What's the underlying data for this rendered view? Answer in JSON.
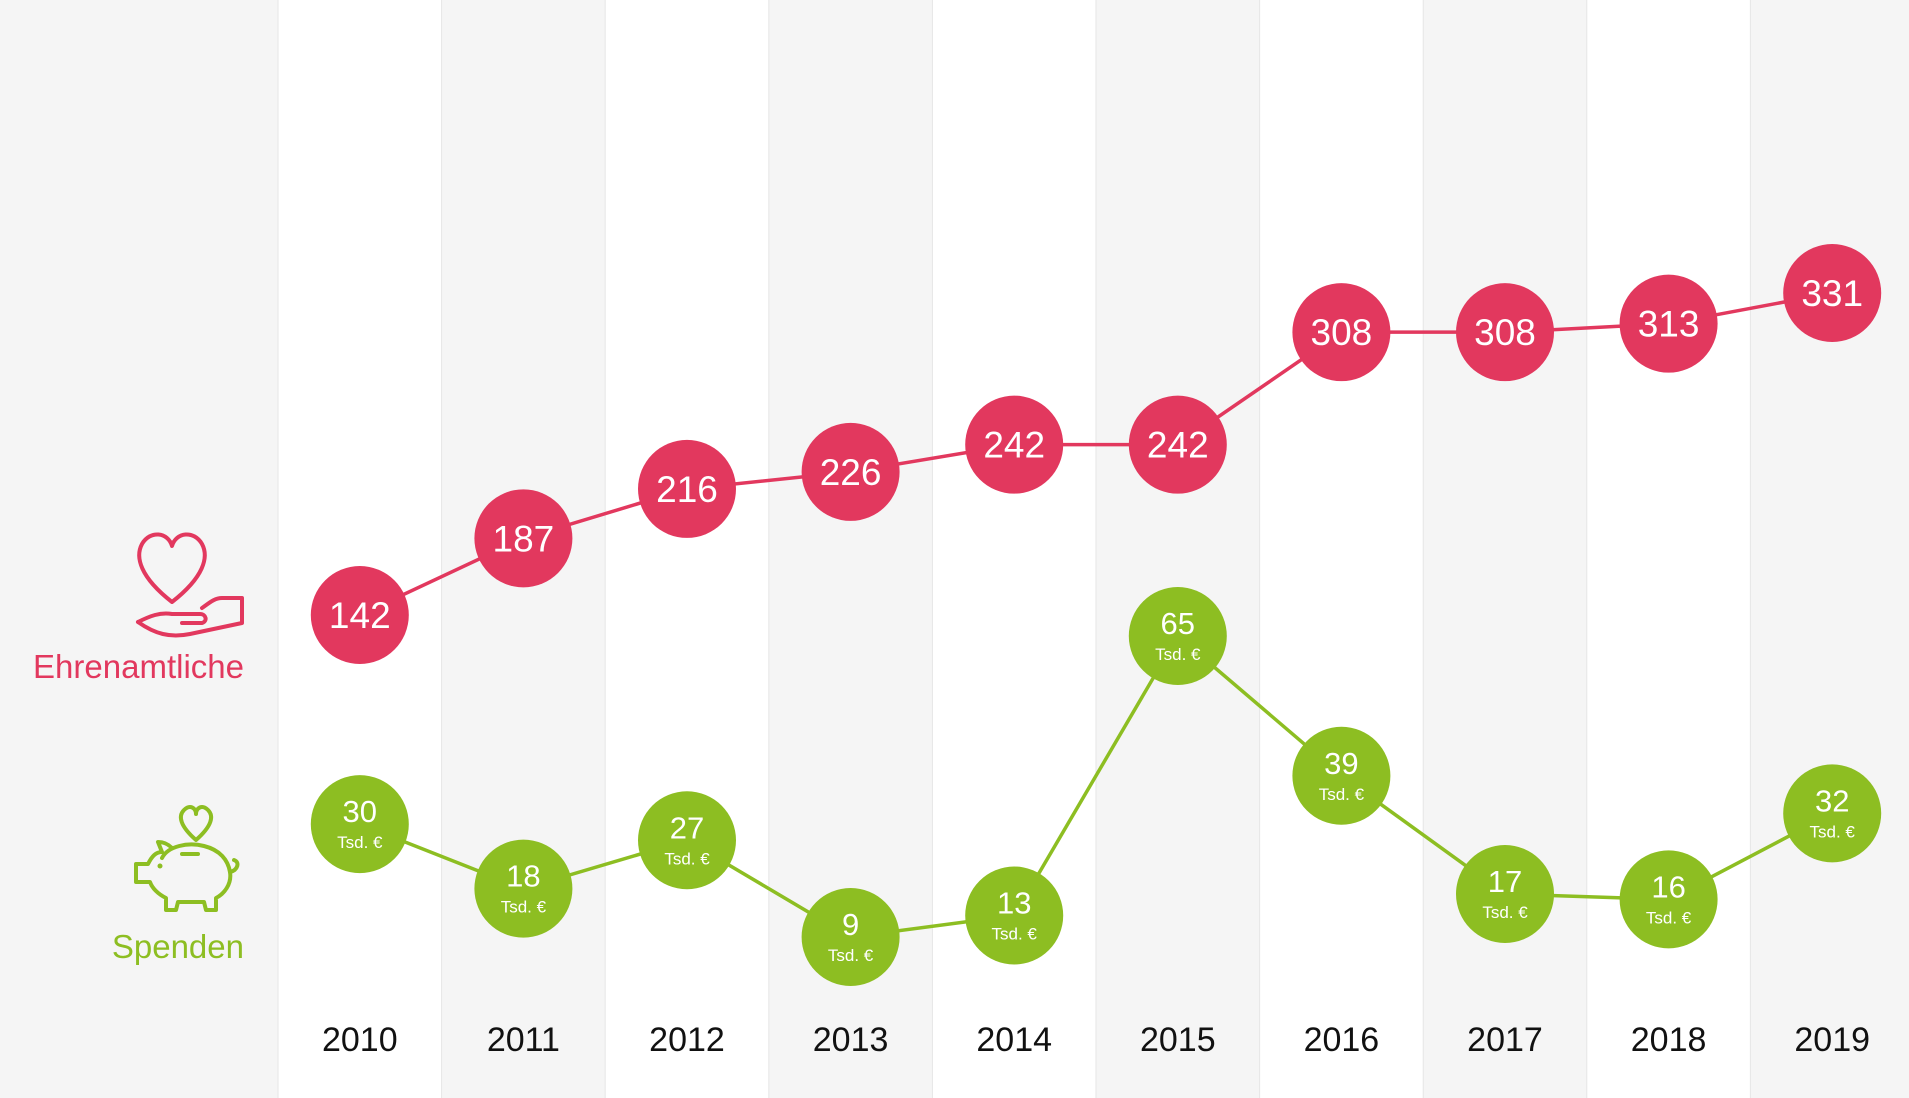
{
  "chart_data": {
    "type": "line",
    "categories": [
      "2010",
      "2011",
      "2012",
      "2013",
      "2014",
      "2015",
      "2016",
      "2017",
      "2018",
      "2019"
    ],
    "series": [
      {
        "name": "Ehrenamtliche",
        "color": "#e2385e",
        "values": [
          142,
          187,
          216,
          226,
          242,
          242,
          308,
          308,
          313,
          331
        ]
      },
      {
        "name": "Spenden",
        "color": "#8dbe22",
        "unit": "Tsd. €",
        "values": [
          30,
          18,
          27,
          9,
          13,
          65,
          39,
          17,
          16,
          32
        ]
      }
    ],
    "legend_icons": {
      "Ehrenamtliche": "heart-in-hand-icon",
      "Spenden": "piggy-bank-heart-icon"
    },
    "column_shading": "alternating white and light gray bands"
  }
}
